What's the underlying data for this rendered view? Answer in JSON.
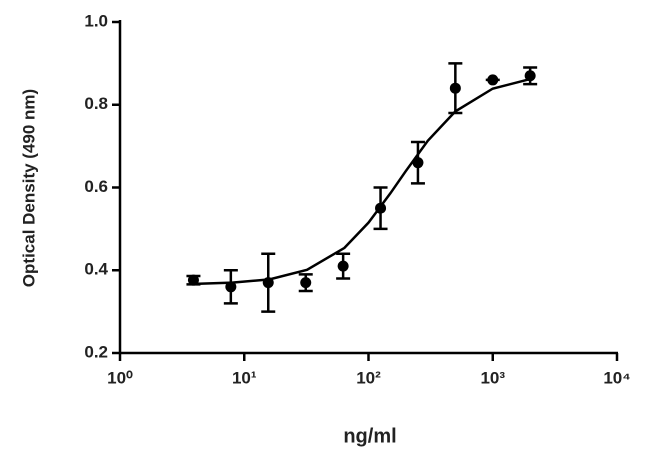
{
  "chart_data": {
    "type": "scatter",
    "x_label": "ng/ml",
    "y_label": "Optical Density (490 nm)",
    "x": [
      3.9,
      7.8,
      15.6,
      31.25,
      62.5,
      125,
      250,
      500,
      1000,
      2000
    ],
    "series": [
      {
        "color": "#000000",
        "values": [
          0.376,
          0.36,
          0.37,
          0.37,
          0.41,
          0.55,
          0.66,
          0.84,
          0.86,
          0.87
        ],
        "errors": [
          0.01,
          0.04,
          0.07,
          0.02,
          0.03,
          0.05,
          0.05,
          0.06,
          0,
          0.02
        ]
      }
    ],
    "curve": {
      "x": [
        4,
        8,
        16,
        32,
        64,
        100,
        150,
        200,
        300,
        500,
        1000,
        2000
      ],
      "values": [
        0.367,
        0.37,
        0.378,
        0.401,
        0.454,
        0.515,
        0.586,
        0.64,
        0.713,
        0.784,
        0.839,
        0.862
      ]
    },
    "xscale": "log",
    "xlim": [
      1,
      10000
    ],
    "xticks": [
      {
        "value": 1,
        "label": "10⁰"
      },
      {
        "value": 10,
        "label": "10¹"
      },
      {
        "value": 100,
        "label": "10²"
      },
      {
        "value": 1000,
        "label": "10³"
      },
      {
        "value": 10000,
        "label": "10⁴"
      }
    ],
    "ylim": [
      0.2,
      1.0
    ],
    "yticks": [
      0.2,
      0.4,
      0.6,
      0.8,
      {
        "value": 1.0,
        "label": "1.0"
      }
    ]
  }
}
